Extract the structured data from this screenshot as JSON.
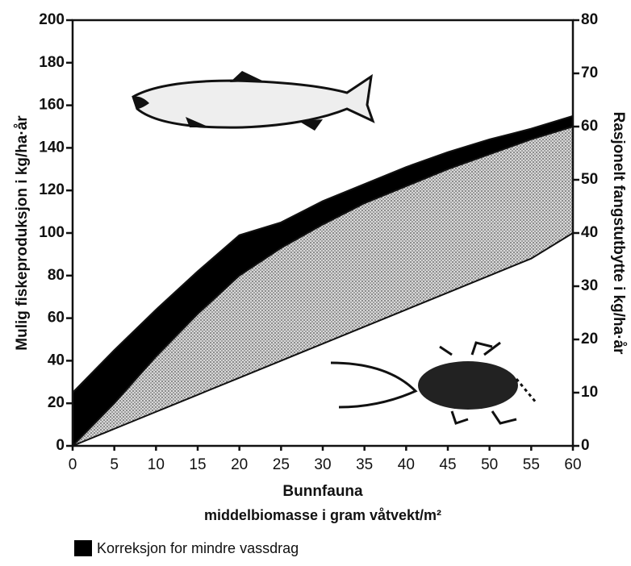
{
  "chart_data": {
    "type": "area",
    "y_label": "Mulig fiskeproduksjon i kg/ha·år",
    "y2_label": "Rasjonelt fangstutbytte i kg/ha·år",
    "x_label": "Bunnfauna",
    "x_sublabel": "middelbiomasse i gram våtvekt/m²",
    "x": [
      0,
      5,
      10,
      15,
      20,
      25,
      30,
      35,
      40,
      45,
      50,
      55,
      60
    ],
    "series": [
      {
        "name": "Korreksjon for mindre vassdrag",
        "color": "#000000",
        "values": [
          25,
          45,
          64,
          82,
          99,
          105,
          115,
          123,
          131,
          138,
          144,
          149,
          155
        ]
      },
      {
        "color": "#b8b8b8",
        "values": [
          0,
          20,
          42,
          62,
          80,
          93,
          104,
          114,
          122,
          130,
          137,
          144,
          150
        ]
      },
      {
        "color": "#ffffff",
        "values": [
          0,
          8,
          16,
          24,
          32,
          40,
          48,
          56,
          64,
          72,
          80,
          88,
          100
        ]
      }
    ],
    "fill_to_next": true,
    "xlim": [
      0,
      60
    ],
    "xticks": [
      0,
      5,
      10,
      15,
      20,
      25,
      30,
      35,
      40,
      45,
      50,
      55,
      60
    ],
    "ylim": [
      0,
      200
    ],
    "yticks": [
      0,
      20,
      40,
      60,
      80,
      100,
      120,
      140,
      160,
      180,
      200
    ],
    "y2lim": [
      0,
      80
    ],
    "y2ticks": [
      0,
      10,
      20,
      30,
      40,
      50,
      60,
      70,
      80
    ],
    "legend": "bottom-left"
  }
}
